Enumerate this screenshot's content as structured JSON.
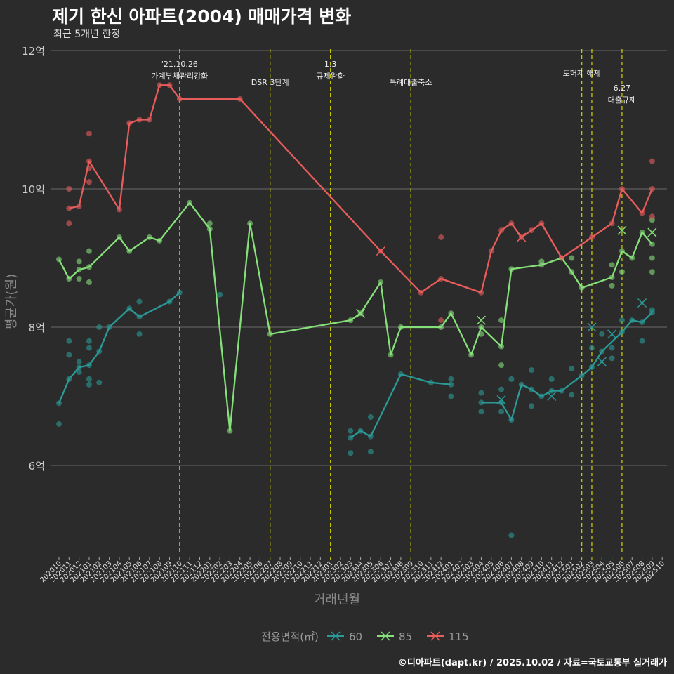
{
  "title": "제기 한신 아파트(2004) 매매가격 변화",
  "subtitle": "최근 5개년 한정",
  "caption": "©디아파트(dapt.kr) / 2025.10.02 / 자료=국토교통부 실거래가",
  "chart_data": {
    "type": "line",
    "xlabel": "거래년월",
    "ylabel": "평균가(원)",
    "ylim": [
      4.7,
      12.2
    ],
    "yticks": [
      {
        "v": 6,
        "label": "6억"
      },
      {
        "v": 8,
        "label": "8억"
      },
      {
        "v": 10,
        "label": "10억"
      },
      {
        "v": 12,
        "label": "12억"
      }
    ],
    "grid": true,
    "months": [
      "202010",
      "202011",
      "202012",
      "202101",
      "202102",
      "202103",
      "202104",
      "202105",
      "202106",
      "202107",
      "202108",
      "202109",
      "202110",
      "202111",
      "202112",
      "202201",
      "202202",
      "202203",
      "202204",
      "202205",
      "202206",
      "202207",
      "202208",
      "202209",
      "202210",
      "202211",
      "202212",
      "202301",
      "202302",
      "202303",
      "202304",
      "202305",
      "202306",
      "202307",
      "202308",
      "202309",
      "202310",
      "202311",
      "202312",
      "202401",
      "202402",
      "202403",
      "202404",
      "202405",
      "202406",
      "202407",
      "202408",
      "202409",
      "202410",
      "202411",
      "202412",
      "202501",
      "202502",
      "202503",
      "202504",
      "202505",
      "202506",
      "202507",
      "202508",
      "202509",
      "202510"
    ],
    "legend": {
      "title": "전용면적(㎡)",
      "position": "bottom"
    },
    "events": [
      {
        "month": "202110",
        "lines": [
          "'21.10.26",
          "가계부채관리강화"
        ],
        "level": 0
      },
      {
        "month": "202207",
        "lines": [
          "DSR 3단계"
        ],
        "level": 1
      },
      {
        "month": "202301",
        "lines": [
          "1.3",
          "규제완화"
        ],
        "level": 0
      },
      {
        "month": "202309",
        "lines": [
          "특례대출축소"
        ],
        "level": 1
      },
      {
        "month": "202502",
        "lines": [
          "토허제 해제"
        ],
        "level": 0.5
      },
      {
        "month": "202503",
        "lines": [],
        "level": 0
      },
      {
        "month": "202506",
        "lines": [
          "6.27",
          "대출규제"
        ],
        "level": 1.3
      }
    ],
    "series": [
      {
        "name": "60",
        "color": "#2a9a96",
        "line": [
          [
            [
              0,
              6.9
            ],
            [
              1,
              7.25
            ],
            [
              2,
              7.42
            ],
            [
              3,
              7.45
            ],
            [
              4,
              7.65
            ],
            [
              5,
              8.0
            ],
            [
              7,
              8.27
            ],
            [
              8,
              8.15
            ],
            [
              11,
              8.37
            ],
            [
              12,
              8.5
            ]
          ],
          [
            [
              29,
              6.4
            ],
            [
              30,
              6.5
            ],
            [
              31,
              6.42
            ],
            [
              34,
              7.32
            ],
            [
              37,
              7.2
            ],
            [
              39,
              7.17
            ]
          ],
          [
            [
              42,
              6.91
            ],
            [
              44,
              6.91
            ],
            [
              45,
              6.66
            ],
            [
              46,
              7.17
            ],
            [
              47,
              7.1
            ],
            [
              48,
              7.0
            ],
            [
              49,
              7.08
            ],
            [
              50,
              7.08
            ],
            [
              52,
              7.3
            ],
            [
              53,
              7.42
            ],
            [
              54,
              7.65
            ],
            [
              56,
              7.93
            ],
            [
              57,
              8.1
            ],
            [
              58,
              8.07
            ],
            [
              59,
              8.21
            ]
          ]
        ],
        "points": [
          [
            0,
            6.6
          ],
          [
            1,
            7.8
          ],
          [
            1,
            7.6
          ],
          [
            2,
            7.35
          ],
          [
            2,
            7.5
          ],
          [
            3,
            7.8
          ],
          [
            3,
            7.7
          ],
          [
            3,
            7.25
          ],
          [
            3,
            7.17
          ],
          [
            4,
            8.0
          ],
          [
            4,
            7.2
          ],
          [
            8,
            8.37
          ],
          [
            8,
            7.9
          ],
          [
            16,
            8.47
          ],
          [
            29,
            6.5
          ],
          [
            29,
            6.18
          ],
          [
            31,
            6.7
          ],
          [
            31,
            6.2
          ],
          [
            39,
            7.25
          ],
          [
            39,
            7.0
          ],
          [
            42,
            7.05
          ],
          [
            42,
            6.78
          ],
          [
            44,
            7.1
          ],
          [
            44,
            6.78
          ],
          [
            45,
            4.99
          ],
          [
            45,
            7.25
          ],
          [
            47,
            7.38
          ],
          [
            47,
            6.86
          ],
          [
            49,
            7.25
          ],
          [
            51,
            7.4
          ],
          [
            51,
            7.02
          ],
          [
            53,
            7.7
          ],
          [
            54,
            7.9
          ],
          [
            55,
            7.7
          ],
          [
            55,
            7.55
          ],
          [
            56,
            8.1
          ],
          [
            58,
            7.8
          ],
          [
            59,
            8.25
          ]
        ],
        "crosses": [
          [
            44,
            6.95
          ],
          [
            49,
            7.0
          ],
          [
            53,
            8.0
          ],
          [
            54,
            7.5
          ],
          [
            55,
            7.9
          ],
          [
            58,
            8.35
          ]
        ]
      },
      {
        "name": "85",
        "color": "#86e07a",
        "line": [
          [
            [
              0,
              8.98
            ],
            [
              1,
              8.7
            ],
            [
              2,
              8.83
            ],
            [
              3,
              8.87
            ],
            [
              6,
              9.3
            ],
            [
              7,
              9.1
            ],
            [
              9,
              9.3
            ],
            [
              10,
              9.25
            ],
            [
              13,
              9.8
            ],
            [
              15,
              9.42
            ],
            [
              17,
              6.5
            ],
            [
              19,
              9.5
            ],
            [
              21,
              7.9
            ],
            [
              29,
              8.1
            ],
            [
              30,
              8.2
            ],
            [
              32,
              8.65
            ],
            [
              33,
              7.6
            ],
            [
              34,
              8.0
            ],
            [
              38,
              8.0
            ],
            [
              39,
              8.2
            ],
            [
              41,
              7.6
            ],
            [
              42,
              8.0
            ],
            [
              44,
              7.72
            ],
            [
              45,
              8.84
            ],
            [
              48,
              8.9
            ],
            [
              50,
              9.0
            ],
            [
              51,
              8.8
            ],
            [
              52,
              8.57
            ],
            [
              55,
              8.72
            ],
            [
              56,
              9.1
            ],
            [
              57,
              9.0
            ],
            [
              58,
              9.37
            ],
            [
              59,
              9.2
            ]
          ]
        ],
        "points": [
          [
            2,
            8.95
          ],
          [
            2,
            8.7
          ],
          [
            3,
            9.1
          ],
          [
            3,
            8.65
          ],
          [
            15,
            9.5
          ],
          [
            44,
            8.1
          ],
          [
            44,
            7.45
          ],
          [
            48,
            8.95
          ],
          [
            51,
            9.0
          ],
          [
            55,
            8.9
          ],
          [
            55,
            8.6
          ],
          [
            56,
            8.8
          ],
          [
            59,
            9.0
          ],
          [
            59,
            8.8
          ],
          [
            59,
            9.55
          ],
          [
            42,
            7.9
          ]
        ],
        "crosses": [
          [
            30,
            8.2
          ],
          [
            42,
            8.1
          ],
          [
            56,
            9.4
          ],
          [
            59,
            9.37
          ]
        ]
      },
      {
        "name": "115",
        "color": "#e85c5c",
        "line": [
          [
            [
              1,
              9.72
            ],
            [
              2,
              9.75
            ],
            [
              3,
              10.4
            ],
            [
              6,
              9.7
            ],
            [
              7,
              10.95
            ],
            [
              8,
              11.0
            ],
            [
              9,
              11.0
            ],
            [
              10,
              11.5
            ],
            [
              11,
              11.5
            ],
            [
              12,
              11.3
            ],
            [
              18,
              11.3
            ],
            [
              32,
              9.1
            ],
            [
              36,
              8.5
            ],
            [
              38,
              8.7
            ],
            [
              42,
              8.5
            ],
            [
              43,
              9.1
            ],
            [
              44,
              9.4
            ],
            [
              45,
              9.5
            ],
            [
              46,
              9.3
            ],
            [
              47,
              9.4
            ],
            [
              48,
              9.5
            ],
            [
              50,
              9.0
            ],
            [
              53,
              9.3
            ],
            [
              55,
              9.5
            ],
            [
              56,
              10.0
            ],
            [
              58,
              9.65
            ],
            [
              59,
              10.0
            ]
          ]
        ],
        "points": [
          [
            1,
            10.0
          ],
          [
            1,
            9.5
          ],
          [
            3,
            10.8
          ],
          [
            3,
            10.1
          ],
          [
            3,
            10.3
          ],
          [
            38,
            9.3
          ],
          [
            38,
            8.1
          ],
          [
            59,
            10.4
          ],
          [
            59,
            9.6
          ]
        ],
        "crosses": [
          [
            32,
            9.1
          ],
          [
            46,
            9.3
          ]
        ]
      }
    ]
  }
}
